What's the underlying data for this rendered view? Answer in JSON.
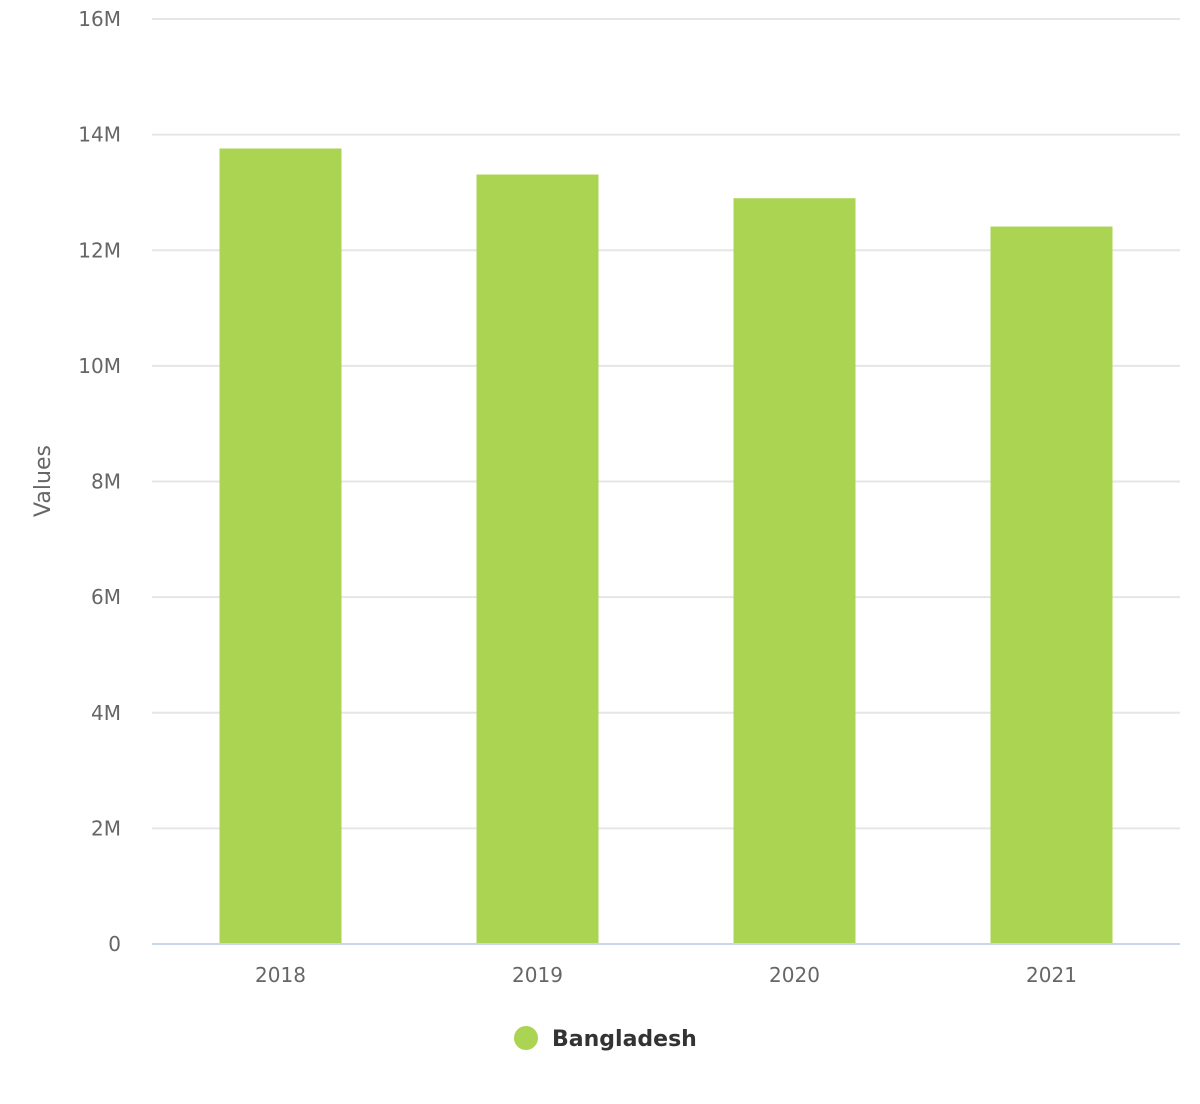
{
  "chart_data": {
    "type": "bar",
    "categories": [
      "2018",
      "2019",
      "2020",
      "2021"
    ],
    "series": [
      {
        "name": "Bangladesh",
        "color": "#abd452",
        "values": [
          13760000,
          13310000,
          12900000,
          12410000
        ]
      }
    ],
    "ylabel": "Values",
    "ylim": [
      0,
      16000000
    ],
    "yticks": [
      0,
      2000000,
      4000000,
      6000000,
      8000000,
      10000000,
      12000000,
      14000000,
      16000000
    ],
    "ytick_labels": [
      "0",
      "2M",
      "4M",
      "6M",
      "8M",
      "10M",
      "12M",
      "14M",
      "16M"
    ],
    "grid": true,
    "legend_position": "bottom-center"
  }
}
